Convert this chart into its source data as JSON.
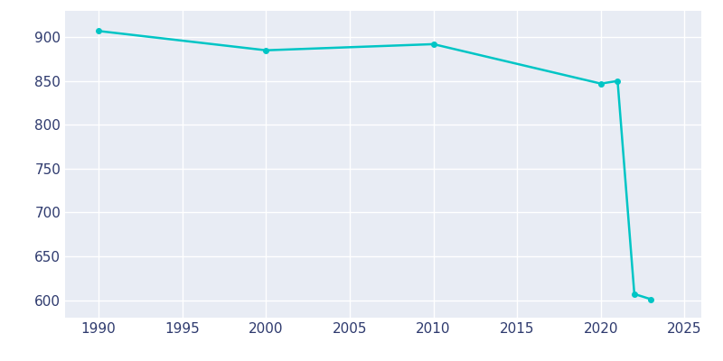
{
  "years": [
    1990,
    2000,
    2010,
    2020,
    2021,
    2022,
    2023
  ],
  "population": [
    907,
    885,
    892,
    847,
    850,
    607,
    601
  ],
  "line_color": "#00C5C5",
  "bg_color": "#E8ECF4",
  "plot_bg_color": "#E8ECF4",
  "outer_bg_color": "#FFFFFF",
  "grid_color": "#FFFFFF",
  "tick_label_color": "#2E3A6E",
  "xlim": [
    1988,
    2026
  ],
  "ylim": [
    580,
    930
  ],
  "yticks": [
    600,
    650,
    700,
    750,
    800,
    850,
    900
  ],
  "xticks": [
    1990,
    1995,
    2000,
    2005,
    2010,
    2015,
    2020,
    2025
  ],
  "line_width": 1.8,
  "marker": "o",
  "marker_size": 4
}
